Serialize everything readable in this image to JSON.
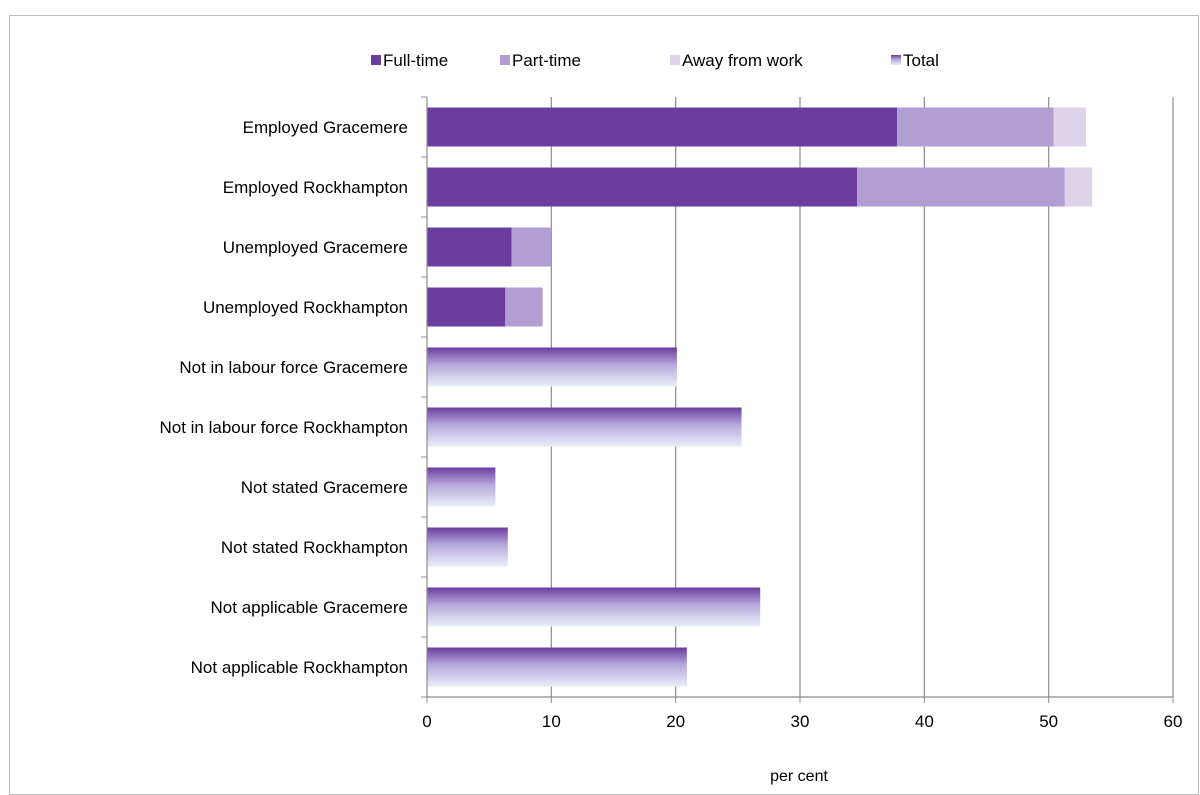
{
  "chart_data": {
    "type": "bar",
    "orientation": "horizontal",
    "stacked": true,
    "title": "",
    "xlabel": "per cent",
    "ylabel": "",
    "xlim": [
      0,
      60
    ],
    "x_ticks": [
      0,
      10,
      20,
      30,
      40,
      50,
      60
    ],
    "grid": true,
    "legend_position": "top",
    "categories": [
      "Employed Gracemere",
      "Employed Rockhampton",
      "Unemployed Gracemere",
      "Unemployed Rockhampton",
      "Not in labour force Gracemere",
      "Not in labour force Rockhampton",
      "Not stated Gracemere",
      "Not stated Rockhampton",
      "Not applicable Gracemere",
      "Not applicable Rockhampton"
    ],
    "series": [
      {
        "name": "Full-time",
        "color": "#6a3d9f",
        "values": [
          37.8,
          34.6,
          6.8,
          6.3,
          0,
          0,
          0,
          0,
          0,
          0
        ]
      },
      {
        "name": "Part-time",
        "color": "#b19ed2",
        "values": [
          12.6,
          16.7,
          3.2,
          3.0,
          0,
          0,
          0,
          0,
          0,
          0
        ]
      },
      {
        "name": "Away from work",
        "color": "#ddd3eb",
        "values": [
          2.6,
          2.2,
          0,
          0,
          0,
          0,
          0,
          0,
          0,
          0
        ]
      },
      {
        "name": "Total",
        "color": "#7a52b8",
        "gradient_end": "#e6eef9",
        "values": [
          0,
          0,
          0,
          0,
          20.1,
          25.3,
          5.5,
          6.5,
          26.8,
          20.9
        ]
      }
    ]
  }
}
